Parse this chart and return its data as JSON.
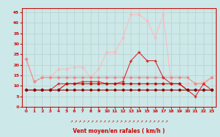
{
  "x": [
    0,
    1,
    2,
    3,
    4,
    5,
    6,
    7,
    8,
    9,
    10,
    11,
    12,
    13,
    14,
    15,
    16,
    17,
    18,
    19,
    20,
    21,
    22,
    23
  ],
  "line1": [
    8,
    8,
    8,
    8,
    8,
    8,
    8,
    8,
    8,
    8,
    8,
    8,
    8,
    8,
    8,
    8,
    8,
    8,
    8,
    8,
    8,
    8,
    8,
    8
  ],
  "line2": [
    8,
    8,
    8,
    8,
    8,
    11,
    11,
    11,
    11,
    11,
    11,
    11,
    11,
    11,
    11,
    11,
    11,
    11,
    11,
    11,
    8,
    8,
    8,
    8
  ],
  "line3": [
    8,
    8,
    8,
    8,
    11,
    11,
    11,
    12,
    12,
    12,
    11,
    11,
    12,
    22,
    26,
    22,
    22,
    14,
    11,
    11,
    8,
    5,
    11,
    8
  ],
  "line4": [
    23,
    12,
    14,
    14,
    14,
    14,
    14,
    14,
    14,
    14,
    14,
    14,
    14,
    14,
    14,
    14,
    14,
    14,
    14,
    14,
    14,
    11,
    11,
    14
  ],
  "line5": [
    23,
    12,
    14,
    14,
    18,
    18,
    19,
    19,
    14,
    18,
    26,
    26,
    33,
    44,
    44,
    41,
    33,
    44,
    11,
    11,
    11,
    11,
    12,
    14
  ],
  "bg_color": "#cce8e8",
  "grid_color": "#bbcccc",
  "line1_color": "#880000",
  "line2_color": "#bb1100",
  "line3_color": "#dd2222",
  "line4_color": "#ee8888",
  "line5_color": "#ffbbbb",
  "xlabel": "Vent moyen/en rafales ( km/h )",
  "ylabel_ticks": [
    0,
    5,
    10,
    15,
    20,
    25,
    30,
    35,
    40,
    45
  ],
  "marker_cross": "+",
  "marker_dot": "o",
  "markersize_dot": 2.0,
  "markersize_cross": 3.5,
  "linewidth": 0.8,
  "tick_color": "#cc0000",
  "spine_color": "#cc0000",
  "arrow_char": "↗"
}
